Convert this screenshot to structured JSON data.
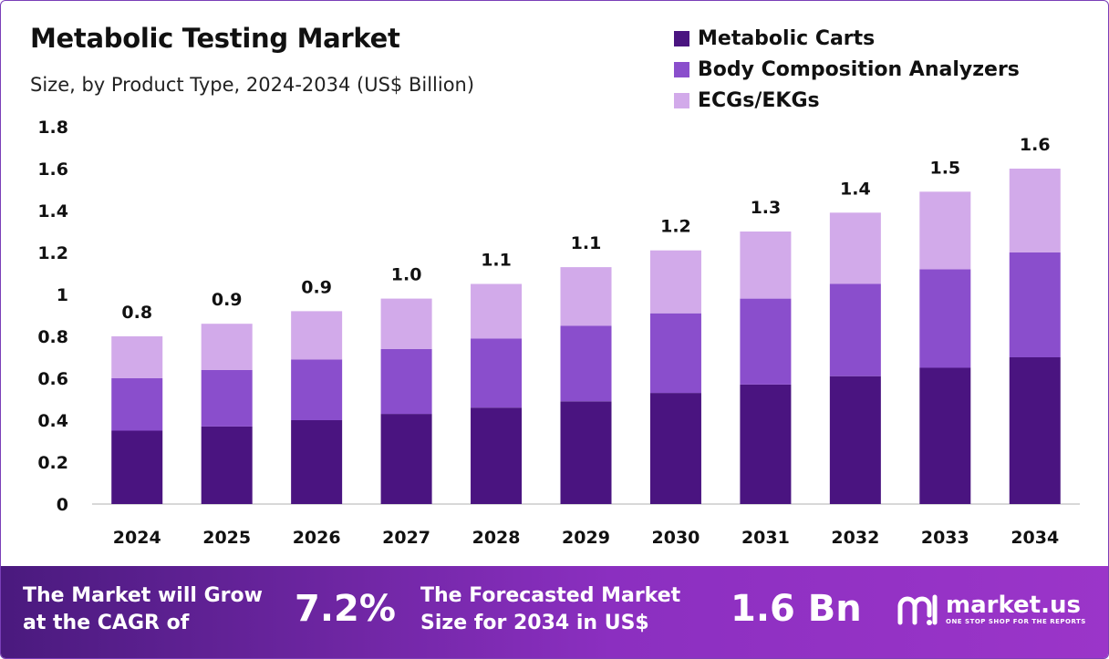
{
  "title": "Metabolic Testing Market",
  "subtitle": "Size, by Product Type, 2024-2034 (US$ Billion)",
  "colors": {
    "series1": "#4a1480",
    "series2": "#8a4ecc",
    "series3": "#d2aaea",
    "axis": "#cccccc",
    "footer_start": "#4a1a7e",
    "footer_end": "#9b35c9"
  },
  "chart_data": {
    "type": "bar",
    "stacked": true,
    "title": "Metabolic Testing Market",
    "subtitle": "Size, by Product Type, 2024-2034 (US$ Billion)",
    "xlabel": "",
    "ylabel": "",
    "ylim": [
      0,
      1.8
    ],
    "yticks": [
      "0",
      "0.2",
      "0.4",
      "0.6",
      "0.8",
      "1",
      "1.2",
      "1.4",
      "1.6",
      "1.8"
    ],
    "categories": [
      "2024",
      "2025",
      "2026",
      "2027",
      "2028",
      "2029",
      "2030",
      "2031",
      "2032",
      "2033",
      "2034"
    ],
    "series": [
      {
        "name": "Metabolic Carts",
        "values": [
          0.35,
          0.37,
          0.4,
          0.43,
          0.46,
          0.49,
          0.53,
          0.57,
          0.61,
          0.65,
          0.7
        ]
      },
      {
        "name": "Body Composition Analyzers",
        "values": [
          0.25,
          0.27,
          0.29,
          0.31,
          0.33,
          0.36,
          0.38,
          0.41,
          0.44,
          0.47,
          0.5
        ]
      },
      {
        "name": "ECGs/EKGs",
        "values": [
          0.2,
          0.22,
          0.23,
          0.24,
          0.26,
          0.28,
          0.3,
          0.32,
          0.34,
          0.37,
          0.4
        ]
      }
    ],
    "total_labels": [
      "0.8",
      "0.9",
      "0.9",
      "1.0",
      "1.1",
      "1.1",
      "1.2",
      "1.3",
      "1.4",
      "1.5",
      "1.6"
    ],
    "legend_position": "top-right",
    "grid": false
  },
  "footer": {
    "cagr_text_line1": "The Market will Grow",
    "cagr_text_line2": "at the CAGR of",
    "cagr_value": "7.2%",
    "forecast_text_line1": "The Forecasted Market",
    "forecast_text_line2": "Size for 2034 in US$",
    "forecast_value": "1.6 Bn",
    "brand_name": "market.us",
    "brand_tagline": "ONE STOP SHOP FOR THE REPORTS"
  }
}
